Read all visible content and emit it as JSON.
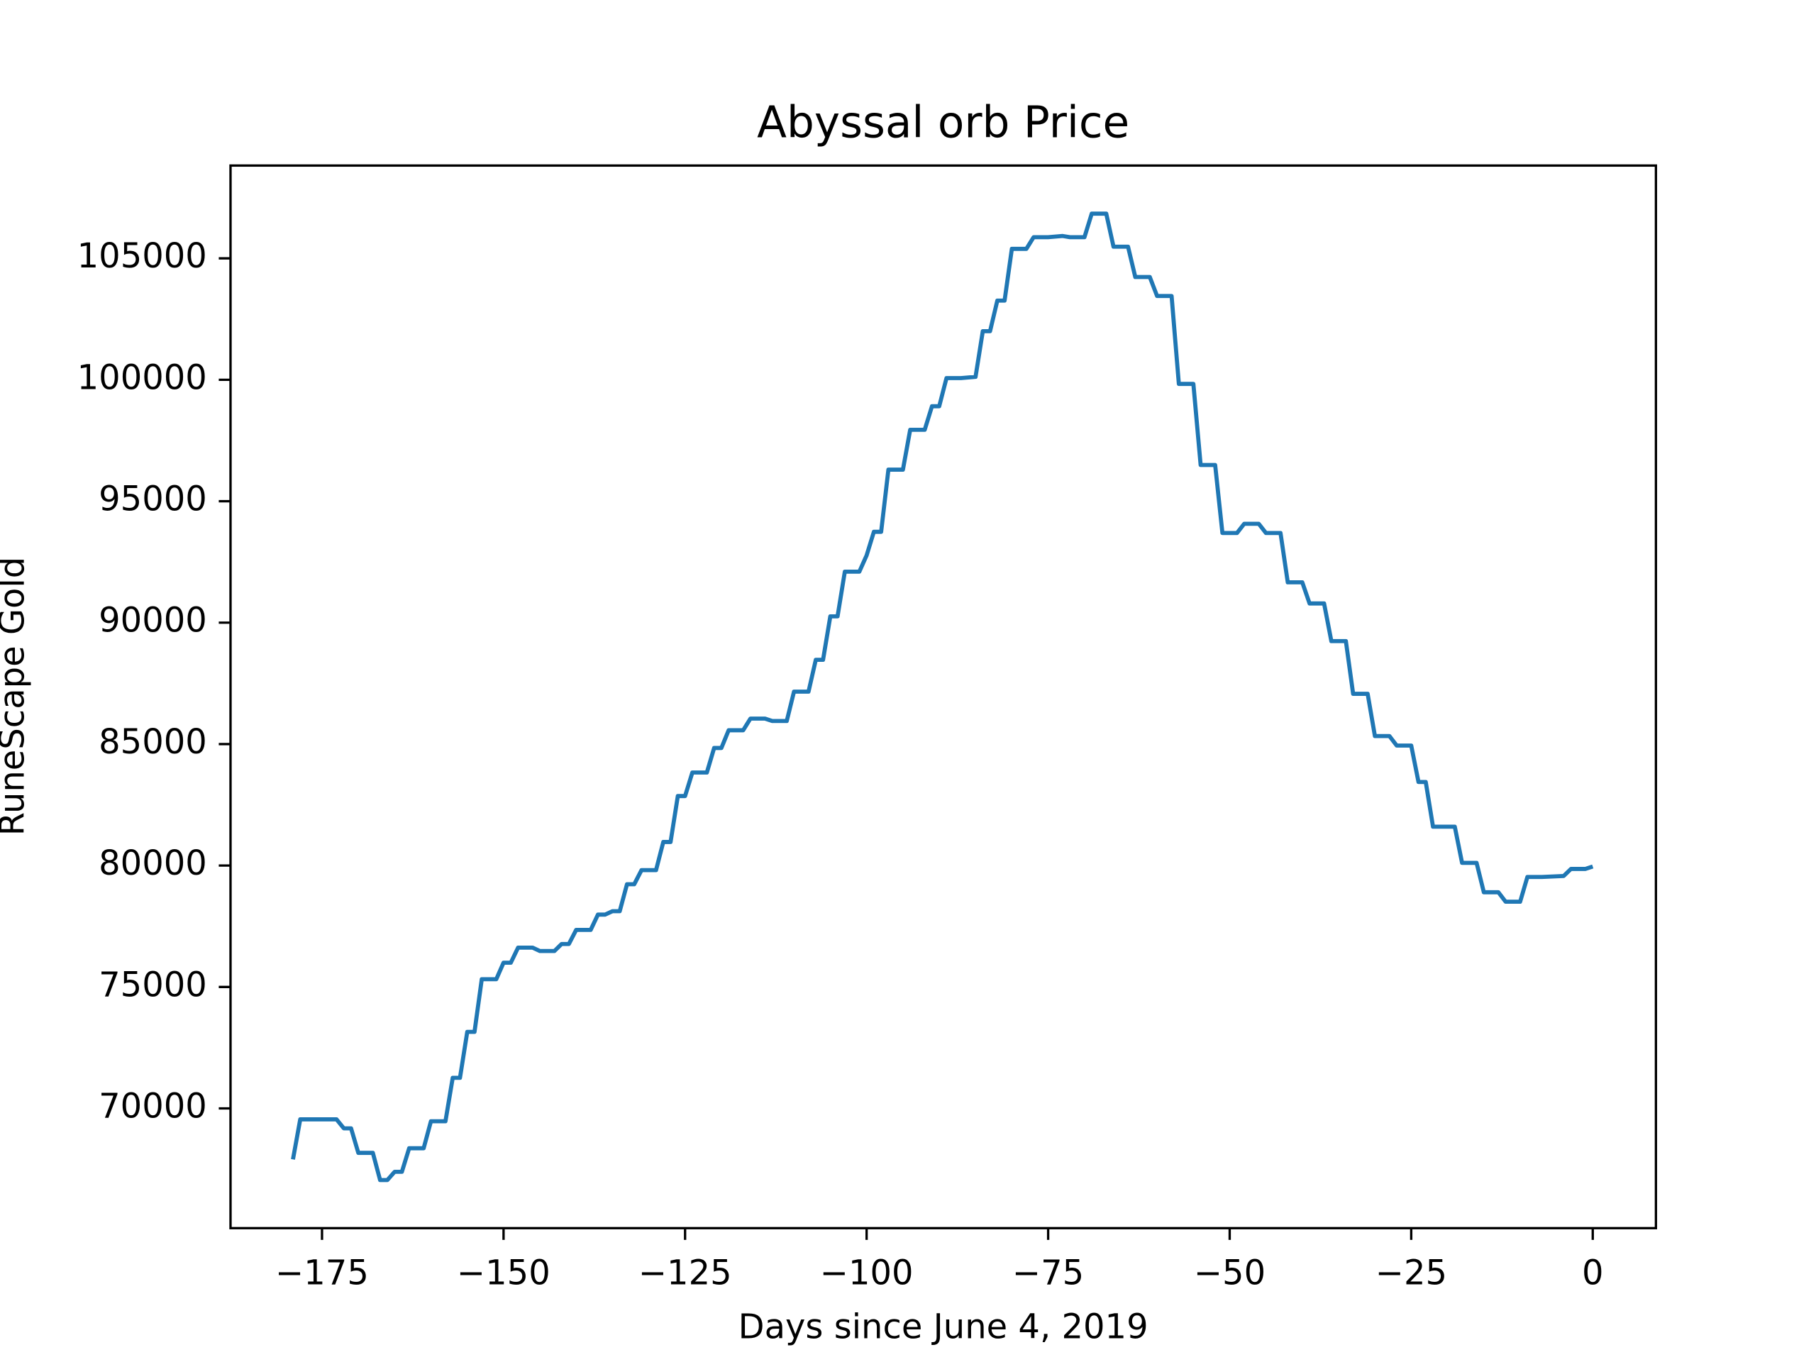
{
  "chart_data": {
    "type": "line",
    "title": "Abyssal orb Price",
    "x_label": "Days since June 4, 2019",
    "y_label": "RuneScape Gold",
    "x": [
      -179,
      -178,
      -173,
      -172,
      -171,
      -170,
      -168,
      -167,
      -166,
      -165,
      -164,
      -163,
      -161,
      -160,
      -158,
      -157,
      -156,
      -155,
      -154,
      -153,
      -151,
      -150,
      -149,
      -148,
      -146,
      -145,
      -143,
      -142,
      -141,
      -140,
      -138,
      -137,
      -136,
      -135,
      -134,
      -133,
      -132,
      -131,
      -129,
      -128,
      -127,
      -126,
      -125,
      -124,
      -122,
      -121,
      -120,
      -119,
      -117,
      -116,
      -114,
      -113,
      -111,
      -110,
      -108,
      -107,
      -106,
      -105,
      -104,
      -103,
      -101,
      -100,
      -99,
      -98,
      -97,
      -95,
      -94,
      -92,
      -91,
      -90,
      -89,
      -87,
      -85,
      -84,
      -83,
      -82,
      -81,
      -80,
      -78,
      -77,
      -75,
      -73,
      -72,
      -70,
      -69,
      -67,
      -66,
      -64,
      -63,
      -61,
      -60,
      -58,
      -57,
      -55,
      -54,
      -52,
      -51,
      -49,
      -48,
      -46,
      -45,
      -43,
      -42,
      -40,
      -39,
      -37,
      -36,
      -34,
      -33,
      -31,
      -30,
      -28,
      -27,
      -25,
      -24,
      -23,
      -22,
      -19,
      -18,
      -16,
      -15,
      -13,
      -12,
      -10,
      -9,
      -7,
      -4,
      -3,
      -1,
      0
    ],
    "series": [
      {
        "name": "Abyssal orb",
        "color": "#1f77b4",
        "values": [
          67900,
          69550,
          69550,
          69180,
          69180,
          68170,
          68170,
          67050,
          67050,
          67390,
          67390,
          68360,
          68360,
          69470,
          69470,
          71260,
          71260,
          73150,
          73150,
          75320,
          75320,
          76000,
          76000,
          76620,
          76620,
          76480,
          76480,
          76770,
          76770,
          77350,
          77350,
          77980,
          77980,
          78120,
          78120,
          79230,
          79230,
          79810,
          79810,
          80970,
          80970,
          82860,
          82860,
          83830,
          83830,
          84840,
          84840,
          85570,
          85570,
          86050,
          86050,
          85950,
          85950,
          87160,
          87160,
          88470,
          88470,
          90260,
          90260,
          92100,
          92100,
          92770,
          93740,
          93740,
          96300,
          96300,
          97940,
          97940,
          98910,
          98910,
          100070,
          100070,
          100120,
          102000,
          102000,
          103260,
          103260,
          105390,
          105390,
          105870,
          105870,
          105920,
          105870,
          105870,
          106840,
          106840,
          105480,
          105480,
          104230,
          104230,
          103450,
          103450,
          99830,
          99830,
          96490,
          96490,
          93690,
          93690,
          94070,
          94070,
          93690,
          93690,
          91660,
          91660,
          90790,
          90790,
          89240,
          89240,
          87070,
          87070,
          85330,
          85330,
          84940,
          84940,
          83440,
          83440,
          81600,
          81600,
          80110,
          80110,
          78900,
          78900,
          78510,
          78510,
          79530,
          79530,
          79570,
          79860,
          79860,
          79960
        ]
      }
    ],
    "xlim": [
      -187.6,
      8.7
    ],
    "ylim": [
      65070,
      108820
    ],
    "xticks": [
      {
        "value": -175,
        "label": "−175"
      },
      {
        "value": -150,
        "label": "−150"
      },
      {
        "value": -125,
        "label": "−125"
      },
      {
        "value": -100,
        "label": "−100"
      },
      {
        "value": -75,
        "label": "−75"
      },
      {
        "value": -50,
        "label": "−50"
      },
      {
        "value": -25,
        "label": "−25"
      },
      0
    ],
    "yticks": [
      70000,
      75000,
      80000,
      85000,
      90000,
      95000,
      100000,
      105000
    ]
  }
}
